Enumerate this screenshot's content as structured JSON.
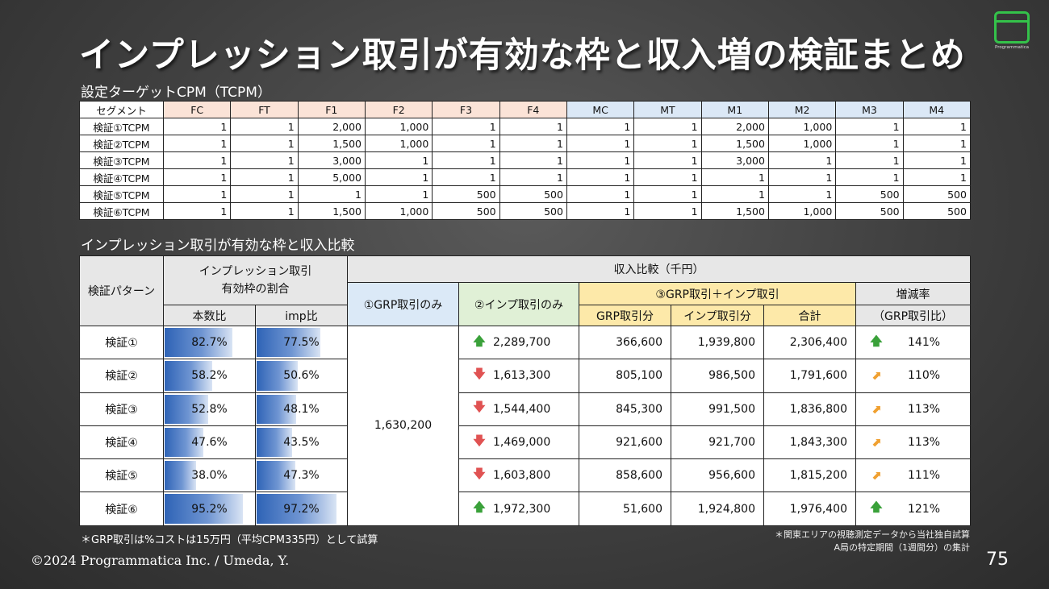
{
  "title": "インプレッション取引が有効な枠と収入増の検証まとめ",
  "logo": {
    "text": "Programmatica"
  },
  "tcpm_section": {
    "title": "設定ターゲットCPM（TCPM）",
    "header": [
      "セグメント",
      "FC",
      "FT",
      "F1",
      "F2",
      "F3",
      "F4",
      "MC",
      "MT",
      "M1",
      "M2",
      "M3",
      "M4"
    ],
    "rows": [
      {
        "label": "検証①TCPM",
        "values": [
          "1",
          "1",
          "2,000",
          "1,000",
          "1",
          "1",
          "1",
          "1",
          "2,000",
          "1,000",
          "1",
          "1"
        ]
      },
      {
        "label": "検証②TCPM",
        "values": [
          "1",
          "1",
          "1,500",
          "1,000",
          "1",
          "1",
          "1",
          "1",
          "1,500",
          "1,000",
          "1",
          "1"
        ]
      },
      {
        "label": "検証③TCPM",
        "values": [
          "1",
          "1",
          "3,000",
          "1",
          "1",
          "1",
          "1",
          "1",
          "3,000",
          "1",
          "1",
          "1"
        ]
      },
      {
        "label": "検証④TCPM",
        "values": [
          "1",
          "1",
          "5,000",
          "1",
          "1",
          "1",
          "1",
          "1",
          "1",
          "1",
          "1",
          "1"
        ]
      },
      {
        "label": "検証⑤TCPM",
        "values": [
          "1",
          "1",
          "1",
          "1",
          "500",
          "500",
          "1",
          "1",
          "1",
          "1",
          "500",
          "500"
        ]
      },
      {
        "label": "検証⑥TCPM",
        "values": [
          "1",
          "1",
          "1,500",
          "1,000",
          "500",
          "500",
          "1",
          "1",
          "1,500",
          "1,000",
          "500",
          "500"
        ]
      }
    ]
  },
  "comparison_section": {
    "title": "インプレッション取引が有効な枠と収入比較",
    "headers": {
      "pattern": "検証パターン",
      "imp_ratio_line1": "インプレッション取引",
      "imp_ratio_line2": "有効枠の割合",
      "count_ratio": "本数比",
      "imp_ratio": "imp比",
      "income": "収入比較（千円）",
      "grp_only": "①GRP取引のみ",
      "imp_only": "②インプ取引のみ",
      "grp_imp": "③GRP取引＋インプ取引",
      "grp_part": "GRP取引分",
      "imp_part": "インプ取引分",
      "total": "合計",
      "change": "増減率",
      "change_sub": "（GRP取引比）"
    },
    "grp_only_value": "1,630,200",
    "rows": [
      {
        "label": "検証①",
        "count_ratio": "82.7%",
        "count_pct": 82.7,
        "imp_ratio": "77.5%",
        "imp_pct": 77.5,
        "imp_only": "2,289,700",
        "imp_only_dir": "up",
        "grp_part": "366,600",
        "imp_part": "1,939,800",
        "total": "2,306,400",
        "change_dir": "up",
        "change": "141%"
      },
      {
        "label": "検証②",
        "count_ratio": "58.2%",
        "count_pct": 58.2,
        "imp_ratio": "50.6%",
        "imp_pct": 50.6,
        "imp_only": "1,613,300",
        "imp_only_dir": "down",
        "grp_part": "805,100",
        "imp_part": "986,500",
        "total": "1,791,600",
        "change_dir": "diag",
        "change": "110%"
      },
      {
        "label": "検証③",
        "count_ratio": "52.8%",
        "count_pct": 52.8,
        "imp_ratio": "48.1%",
        "imp_pct": 48.1,
        "imp_only": "1,544,400",
        "imp_only_dir": "down",
        "grp_part": "845,300",
        "imp_part": "991,500",
        "total": "1,836,800",
        "change_dir": "diag",
        "change": "113%"
      },
      {
        "label": "検証④",
        "count_ratio": "47.6%",
        "count_pct": 47.6,
        "imp_ratio": "43.5%",
        "imp_pct": 43.5,
        "imp_only": "1,469,000",
        "imp_only_dir": "down",
        "grp_part": "921,600",
        "imp_part": "921,700",
        "total": "1,843,300",
        "change_dir": "diag",
        "change": "113%"
      },
      {
        "label": "検証⑤",
        "count_ratio": "38.0%",
        "count_pct": 38.0,
        "imp_ratio": "47.3%",
        "imp_pct": 47.3,
        "imp_only": "1,603,800",
        "imp_only_dir": "down",
        "grp_part": "858,600",
        "imp_part": "956,600",
        "total": "1,815,200",
        "change_dir": "diag",
        "change": "111%"
      },
      {
        "label": "検証⑥",
        "count_ratio": "95.2%",
        "count_pct": 95.2,
        "imp_ratio": "97.2%",
        "imp_pct": 97.2,
        "imp_only": "1,972,300",
        "imp_only_dir": "up",
        "grp_part": "51,600",
        "imp_part": "1,924,800",
        "total": "1,976,400",
        "change_dir": "up",
        "change": "121%"
      }
    ]
  },
  "notes": {
    "left": "＊GRP取引は%コストは15万円（平均CPM335円）として試算",
    "right_line1": "＊関東エリアの視聴測定データから当社独自試算",
    "right_line2": "A局の特定期間（1週間分）の集計"
  },
  "footer": {
    "copyright": "©2024  Programmatica Inc. / Umeda, Y.",
    "page_number": "75"
  }
}
